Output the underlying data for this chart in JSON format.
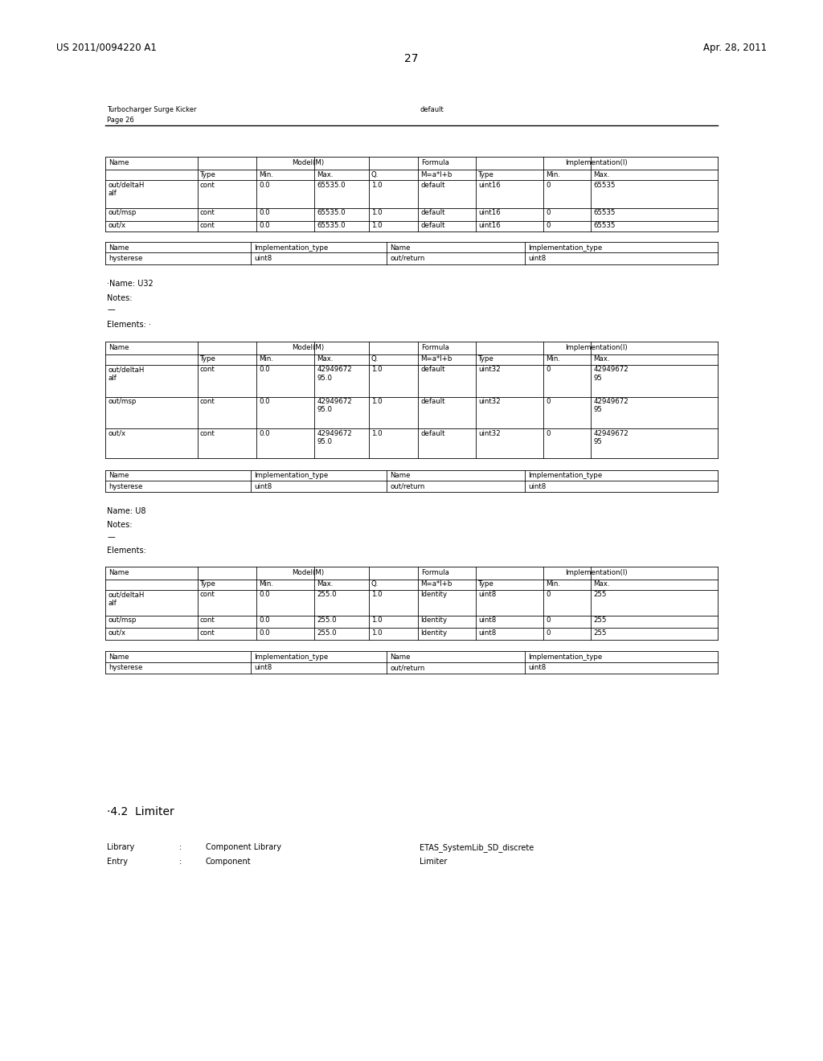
{
  "bg_color": "#ffffff",
  "header_left": "US 2011/0094220 A1",
  "header_right": "Apr. 28, 2011",
  "page_number": "27",
  "doc_title_left": "Turbocharger Surge Kicker",
  "doc_title_left2": "Page 26",
  "doc_title_right": "default"
}
